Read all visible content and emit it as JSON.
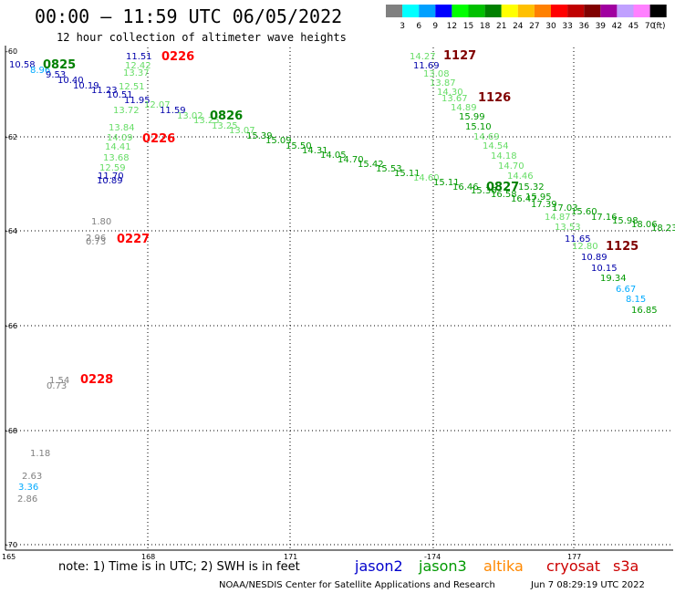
{
  "header": {
    "title": "00:00 – 11:59 UTC 06/05/2022",
    "subtitle": "12 hour collection of altimeter wave heights"
  },
  "color_scale": {
    "unit": "(ft)",
    "colors": [
      "#808080",
      "#00ffff",
      "#00a0ff",
      "#0000ff",
      "#00ff00",
      "#00c000",
      "#008000",
      "#ffff00",
      "#ffc000",
      "#ff8000",
      "#ff0000",
      "#c00000",
      "#800000",
      "#a000a0",
      "#c0a0ff",
      "#ff80ff",
      "#000000"
    ],
    "labels": [
      "3",
      "6",
      "9",
      "12",
      "15",
      "18",
      "21",
      "24",
      "27",
      "30",
      "33",
      "36",
      "39",
      "42",
      "45",
      "70"
    ]
  },
  "axes": {
    "lat_labels": [
      "-60",
      "-62",
      "-64",
      "-66",
      "-68",
      "-70"
    ],
    "lon_labels": [
      "165",
      "168",
      "171",
      "-174",
      "177"
    ]
  },
  "observations": [
    {
      "text": "10.58",
      "color": "#0000aa"
    },
    {
      "text": "8.96",
      "color": "#00aaff"
    },
    {
      "text": "9.53",
      "color": "#0000aa"
    },
    {
      "text": "10.40",
      "color": "#0000aa"
    },
    {
      "text": "10.19",
      "color": "#0000aa"
    },
    {
      "text": "11.23",
      "color": "#0000aa"
    },
    {
      "text": "10.51",
      "color": "#0000aa"
    },
    {
      "text": "11.95",
      "color": "#0000aa"
    },
    {
      "text": "11.51",
      "color": "#0000aa"
    },
    {
      "text": "12.42",
      "color": "#66dd66"
    },
    {
      "text": "13.37",
      "color": "#66dd66"
    },
    {
      "text": "12.51",
      "color": "#66dd66"
    },
    {
      "text": "13.72",
      "color": "#66dd66"
    },
    {
      "text": "12.07",
      "color": "#66dd66"
    },
    {
      "text": "11.59",
      "color": "#0000aa"
    },
    {
      "text": "13.02",
      "color": "#66dd66"
    },
    {
      "text": "13.25",
      "color": "#66dd66"
    },
    {
      "text": "13.25",
      "color": "#66dd66"
    },
    {
      "text": "13.84",
      "color": "#66dd66"
    },
    {
      "text": "14.09",
      "color": "#66dd66"
    },
    {
      "text": "14.41",
      "color": "#66dd66"
    },
    {
      "text": "13.68",
      "color": "#66dd66"
    },
    {
      "text": "12.59",
      "color": "#66dd66"
    },
    {
      "text": "11.70",
      "color": "#0000aa"
    },
    {
      "text": "10.89",
      "color": "#0000aa"
    },
    {
      "text": "13.07",
      "color": "#66dd66"
    },
    {
      "text": "15.39",
      "color": "#009900"
    },
    {
      "text": "15.09",
      "color": "#009900"
    },
    {
      "text": "15.50",
      "color": "#009900"
    },
    {
      "text": "14.31",
      "color": "#009900"
    },
    {
      "text": "14.05",
      "color": "#009900"
    },
    {
      "text": "14.70",
      "color": "#009900"
    },
    {
      "text": "15.42",
      "color": "#009900"
    },
    {
      "text": "15.53",
      "color": "#009900"
    },
    {
      "text": "15.11",
      "color": "#009900"
    },
    {
      "text": "14.60",
      "color": "#66dd66"
    },
    {
      "text": "15.11",
      "color": "#009900"
    },
    {
      "text": "16.46",
      "color": "#009900"
    },
    {
      "text": "14.27",
      "color": "#66dd66"
    },
    {
      "text": "11.69",
      "color": "#0000aa"
    },
    {
      "text": "13.08",
      "color": "#66dd66"
    },
    {
      "text": "13.87",
      "color": "#66dd66"
    },
    {
      "text": "14.30",
      "color": "#66dd66"
    },
    {
      "text": "13.67",
      "color": "#66dd66"
    },
    {
      "text": "14.89",
      "color": "#66dd66"
    },
    {
      "text": "15.99",
      "color": "#009900"
    },
    {
      "text": "15.10",
      "color": "#009900"
    },
    {
      "text": "14.69",
      "color": "#66dd66"
    },
    {
      "text": "14.54",
      "color": "#66dd66"
    },
    {
      "text": "14.18",
      "color": "#66dd66"
    },
    {
      "text": "14.70",
      "color": "#66dd66"
    },
    {
      "text": "14.46",
      "color": "#66dd66"
    },
    {
      "text": "15.32",
      "color": "#009900"
    },
    {
      "text": "15.95",
      "color": "#009900"
    },
    {
      "text": "16.58",
      "color": "#009900"
    },
    {
      "text": "15.36",
      "color": "#009900"
    },
    {
      "text": "16.47",
      "color": "#009900"
    },
    {
      "text": "17.39",
      "color": "#009900"
    },
    {
      "text": "17.03",
      "color": "#009900"
    },
    {
      "text": "15.60",
      "color": "#009900"
    },
    {
      "text": "14.87",
      "color": "#66dd66"
    },
    {
      "text": "17.16",
      "color": "#009900"
    },
    {
      "text": "15.98",
      "color": "#009900"
    },
    {
      "text": "18.06",
      "color": "#009900"
    },
    {
      "text": "18.23",
      "color": "#009900"
    },
    {
      "text": "13.53",
      "color": "#66dd66"
    },
    {
      "text": "11.65",
      "color": "#0000aa"
    },
    {
      "text": "12.80",
      "color": "#66dd66"
    },
    {
      "text": "10.89",
      "color": "#0000aa"
    },
    {
      "text": "10.15",
      "color": "#0000aa"
    },
    {
      "text": "19.34",
      "color": "#009900"
    },
    {
      "text": "6.67",
      "color": "#00aaff"
    },
    {
      "text": "8.15",
      "color": "#00aaff"
    },
    {
      "text": "16.85",
      "color": "#009900"
    },
    {
      "text": "1.80",
      "color": "#808080"
    },
    {
      "text": "2.96",
      "color": "#808080"
    },
    {
      "text": "0.73",
      "color": "#808080"
    },
    {
      "text": "1.54",
      "color": "#808080"
    },
    {
      "text": "0.73",
      "color": "#808080"
    },
    {
      "text": "1.18",
      "color": "#808080"
    },
    {
      "text": "2.63",
      "color": "#808080"
    },
    {
      "text": "3.36",
      "color": "#00aaff"
    },
    {
      "text": "2.86",
      "color": "#808080"
    }
  ],
  "time_labels": [
    {
      "text": "0825",
      "color": "#008000"
    },
    {
      "text": "0226",
      "color": "#ff0000"
    },
    {
      "text": "0826",
      "color": "#008000"
    },
    {
      "text": "0226",
      "color": "#ff0000"
    },
    {
      "text": "0227",
      "color": "#ff0000"
    },
    {
      "text": "0228",
      "color": "#ff0000"
    },
    {
      "text": "1127",
      "color": "#800000"
    },
    {
      "text": "1126",
      "color": "#800000"
    },
    {
      "text": "0827",
      "color": "#008000"
    },
    {
      "text": "1125",
      "color": "#800000"
    }
  ],
  "footer": {
    "note": "note: 1) Time is in UTC; 2) SWH is in feet",
    "satellites": [
      {
        "name": "jason2",
        "color": "#0000cc"
      },
      {
        "name": "jason3",
        "color": "#009900"
      },
      {
        "name": "altika",
        "color": "#ff8800"
      },
      {
        "name": "cryosat",
        "color": "#cc0000"
      },
      {
        "name": "s3a",
        "color": "#cc0000"
      }
    ],
    "credit": "NOAA/NESDIS Center for Satellite Applications and Research",
    "timestamp": "Jun  7 08:29:19 UTC 2022"
  }
}
